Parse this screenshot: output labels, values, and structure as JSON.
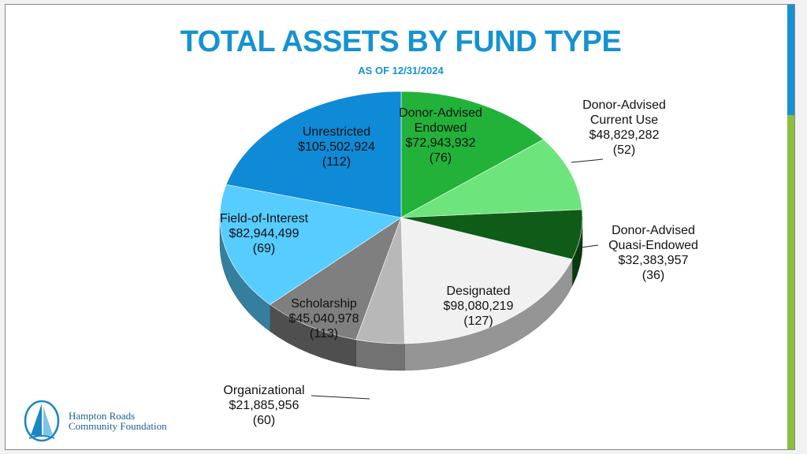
{
  "header": {
    "title": "TOTAL ASSETS BY FUND TYPE",
    "subtitle": "AS OF 12/31/2024"
  },
  "logo": {
    "line1": "Hampton Roads",
    "line2": "Community Foundation",
    "icon": "sail-logo-icon"
  },
  "colors": {
    "title": "#1592d1",
    "accent_green": "#8cbf3f"
  },
  "chart_data": {
    "type": "pie",
    "style": "3d",
    "unit": "USD",
    "slices": [
      {
        "label_lines": [
          "Donor-Advised",
          "Endowed"
        ],
        "value": 72943932,
        "value_text": "$72,943,932",
        "count": 76,
        "count_text": "(76)",
        "color": "#22b23a"
      },
      {
        "label_lines": [
          "Donor-Advised",
          "Current Use"
        ],
        "value": 48829282,
        "value_text": "$48,829,282",
        "count": 52,
        "count_text": "(52)",
        "color": "#6ee47c"
      },
      {
        "label_lines": [
          "Donor-Advised",
          "Quasi-Endowed"
        ],
        "value": 32383957,
        "value_text": "$32,383,957",
        "count": 36,
        "count_text": "(36)",
        "color": "#0f5c18"
      },
      {
        "label_lines": [
          "Designated"
        ],
        "value": 98080219,
        "value_text": "$98,080,219",
        "count": 127,
        "count_text": "(127)",
        "color": "#f1f1f1"
      },
      {
        "label_lines": [
          "Organizational"
        ],
        "value": 21885956,
        "value_text": "$21,885,956",
        "count": 60,
        "count_text": "(60)",
        "color": "#b8b8b8"
      },
      {
        "label_lines": [
          "Scholarship"
        ],
        "value": 45040978,
        "value_text": "$45,040,978",
        "count": 113,
        "count_text": "(113)",
        "color": "#7f7f7f"
      },
      {
        "label_lines": [
          "Field-of-Interest"
        ],
        "value": 82944499,
        "value_text": "$82,944,499",
        "count": 69,
        "count_text": "(69)",
        "color": "#57ccff"
      },
      {
        "label_lines": [
          "Unrestricted"
        ],
        "value": 105502924,
        "value_text": "$105,502,924",
        "count": 112,
        "count_text": "(112)",
        "color": "#0f8ad6"
      }
    ]
  }
}
